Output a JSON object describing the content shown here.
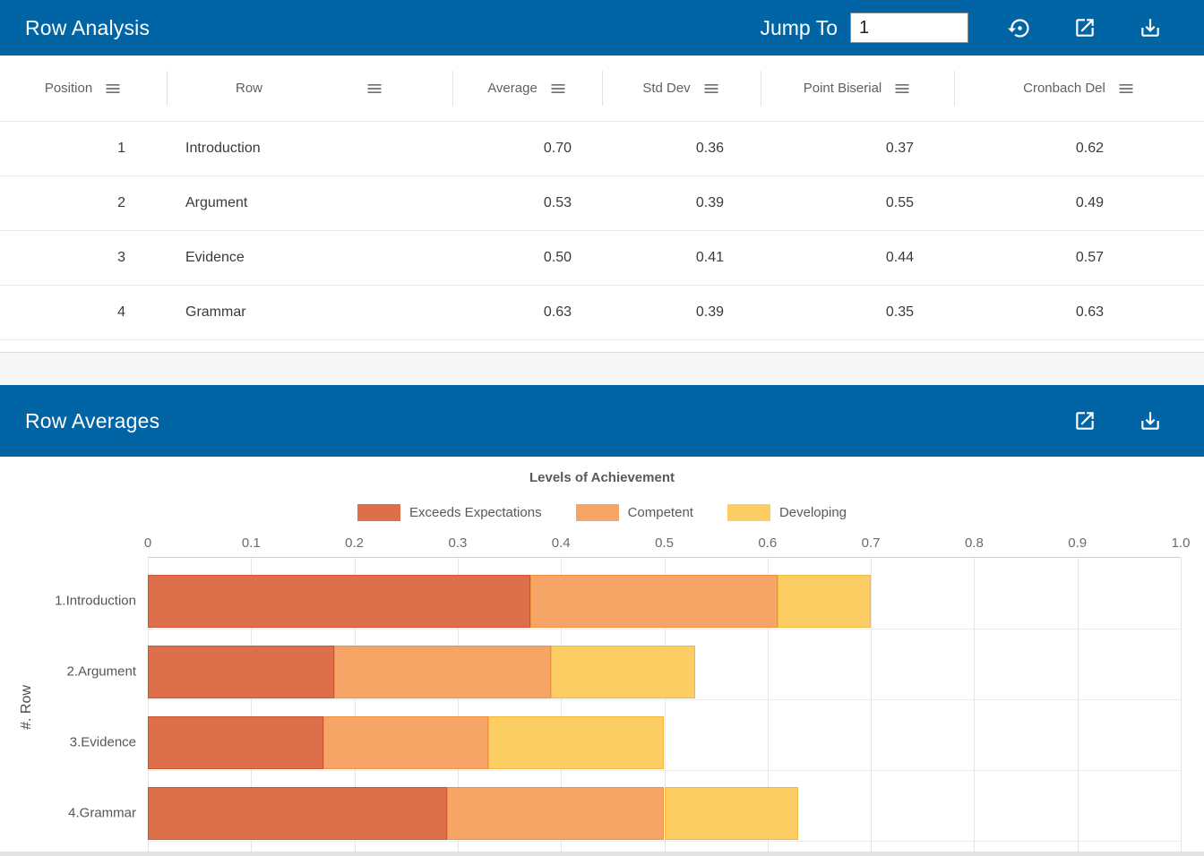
{
  "colors": {
    "header_bg": "#0064a5",
    "header_text": "#ffffff",
    "series_exceeds": "#dd6f4b",
    "series_competent": "#f7a566",
    "series_developing": "#fbcd63"
  },
  "analysis": {
    "title": "Row Analysis",
    "jump_to": {
      "label": "Jump To",
      "value": "1"
    },
    "toolbar_icons": [
      "restore-icon",
      "open-in-new-icon",
      "download-icon"
    ],
    "table": {
      "columns": [
        {
          "label": "Position"
        },
        {
          "label": "Row"
        },
        {
          "label": "Average"
        },
        {
          "label": "Std Dev"
        },
        {
          "label": "Point Biserial"
        },
        {
          "label": "Cronbach Del"
        }
      ],
      "rows": [
        [
          "1",
          "Introduction",
          "0.70",
          "0.36",
          "0.37",
          "0.62"
        ],
        [
          "2",
          "Argument",
          "0.53",
          "0.39",
          "0.55",
          "0.49"
        ],
        [
          "3",
          "Evidence",
          "0.50",
          "0.41",
          "0.44",
          "0.57"
        ],
        [
          "4",
          "Grammar",
          "0.63",
          "0.39",
          "0.35",
          "0.63"
        ]
      ]
    }
  },
  "averages": {
    "title": "Row Averages",
    "toolbar_icons": [
      "open-in-new-icon",
      "download-icon"
    ]
  },
  "chart_data": {
    "type": "bar",
    "stacked": true,
    "horizontal": true,
    "title": "Levels of Achievement",
    "categories": [
      "1.Introduction",
      "2.Argument",
      "3.Evidence",
      "4.Grammar"
    ],
    "series": [
      {
        "name": "Exceeds Expectations",
        "color": "#dd6f4b",
        "border_color": "#cc5630",
        "values": [
          0.37,
          0.18,
          0.17,
          0.29
        ]
      },
      {
        "name": "Competent",
        "color": "#f7a566",
        "border_color": "#ee9043",
        "values": [
          0.24,
          0.21,
          0.16,
          0.21
        ]
      },
      {
        "name": "Developing",
        "color": "#fbcd63",
        "border_color": "#f1b73e",
        "values": [
          0.09,
          0.14,
          0.17,
          0.13
        ]
      }
    ],
    "stack_totals": [
      0.7,
      0.53,
      0.5,
      0.63
    ],
    "xlim": [
      0,
      1.0
    ],
    "x_ticks": [
      "0",
      "0.1",
      "0.2",
      "0.3",
      "0.4",
      "0.5",
      "0.6",
      "0.7",
      "0.8",
      "0.9",
      "1.0"
    ],
    "ylabel": "#. Row",
    "axis_labels_position": "top",
    "legend_position": "top",
    "grid": true
  }
}
